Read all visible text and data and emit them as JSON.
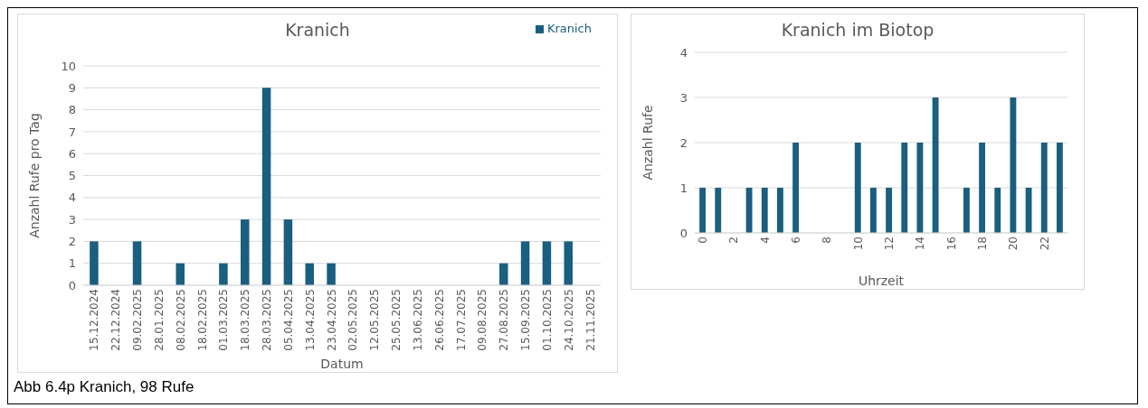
{
  "chart_data": [
    {
      "type": "bar",
      "title": "Kranich",
      "xlabel": "Datum",
      "ylabel": "Anzahl Rufe pro Tag",
      "categories": [
        "15.12.2024",
        "22.12.2024",
        "09.02.2025",
        "28.01.2025",
        "08.02.2025",
        "18.02.2025",
        "01.03.2025",
        "18.03.2025",
        "28.03.2025",
        "05.04.2025",
        "13.04.2025",
        "23.04.2025",
        "02.05.2025",
        "12.05.2025",
        "25.05.2025",
        "13.06.2025",
        "26.06.2025",
        "17.07.2025",
        "09.08.2025",
        "27.08.2025",
        "15.09.2025",
        "01.10.2025",
        "24.10.2025",
        "21.11.2025"
      ],
      "series": [
        {
          "name": "Kranich",
          "color": "#1a5e80",
          "values": [
            2,
            0,
            2,
            0,
            1,
            0,
            1,
            3,
            9,
            3,
            1,
            1,
            0,
            0,
            0,
            0,
            0,
            0,
            0,
            1,
            2,
            2,
            2,
            0
          ]
        }
      ],
      "ylim": [
        0,
        10
      ],
      "yticks": [
        0,
        1,
        2,
        3,
        4,
        5,
        6,
        7,
        8,
        9,
        10
      ],
      "grid": "y",
      "legend": "top right",
      "annotations": [
        "Abb 6.4p Kranich, 98 Rufe"
      ]
    },
    {
      "type": "bar",
      "title": "Kranich im Biotop",
      "xlabel": "Uhrzeit",
      "ylabel": "Anzahl Rufe",
      "categories": [
        "0",
        null,
        "2",
        null,
        "4",
        null,
        "6",
        null,
        "8",
        null,
        "10",
        null,
        "12",
        null,
        "14",
        null,
        "16",
        null,
        "18",
        null,
        "20",
        null,
        "22",
        null
      ],
      "series": [
        {
          "color": "#1a5e80",
          "values": [
            1,
            1,
            0,
            1,
            1,
            1,
            2,
            0,
            0,
            0,
            2,
            1,
            1,
            2,
            2,
            3,
            0,
            1,
            2,
            1,
            3,
            1,
            2,
            2
          ]
        }
      ],
      "ylim": [
        0,
        4
      ],
      "yticks": [
        0,
        1,
        2,
        3,
        4
      ],
      "grid": "y",
      "legend": false
    }
  ]
}
